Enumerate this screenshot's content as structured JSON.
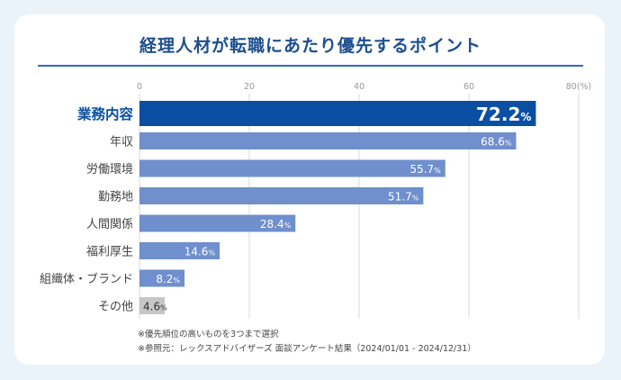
{
  "title": "経理人材が転職にあたり優先するポイント",
  "notes": [
    "※優先順位の高いものを3つまで選択",
    "※参照元：レックスアドバイザーズ 面談アンケート結果（2024/01/01 - 2024/12/31）"
  ],
  "colors": {
    "highlight": "#0b4fa3",
    "bar": "#6f8fcd",
    "other": "#c6c6c6",
    "highlight_label": "#0b4fa3",
    "label": "#444444",
    "grid": "#d8d8d8"
  },
  "chart_data": {
    "type": "bar",
    "orientation": "horizontal",
    "title": "経理人材が転職にあたり優先するポイント",
    "categories": [
      "業務内容",
      "年収",
      "労働環境",
      "勤務地",
      "人間関係",
      "福利厚生",
      "組織体・ブランド",
      "その他"
    ],
    "values": [
      72.2,
      68.6,
      55.7,
      51.7,
      28.4,
      14.6,
      8.2,
      4.6
    ],
    "value_suffix": "%",
    "x_ticks": [
      "0",
      "20",
      "40",
      "60",
      "80(%)"
    ],
    "xlim": [
      0,
      80
    ],
    "highlight_index": 0,
    "muted_index": 7
  }
}
